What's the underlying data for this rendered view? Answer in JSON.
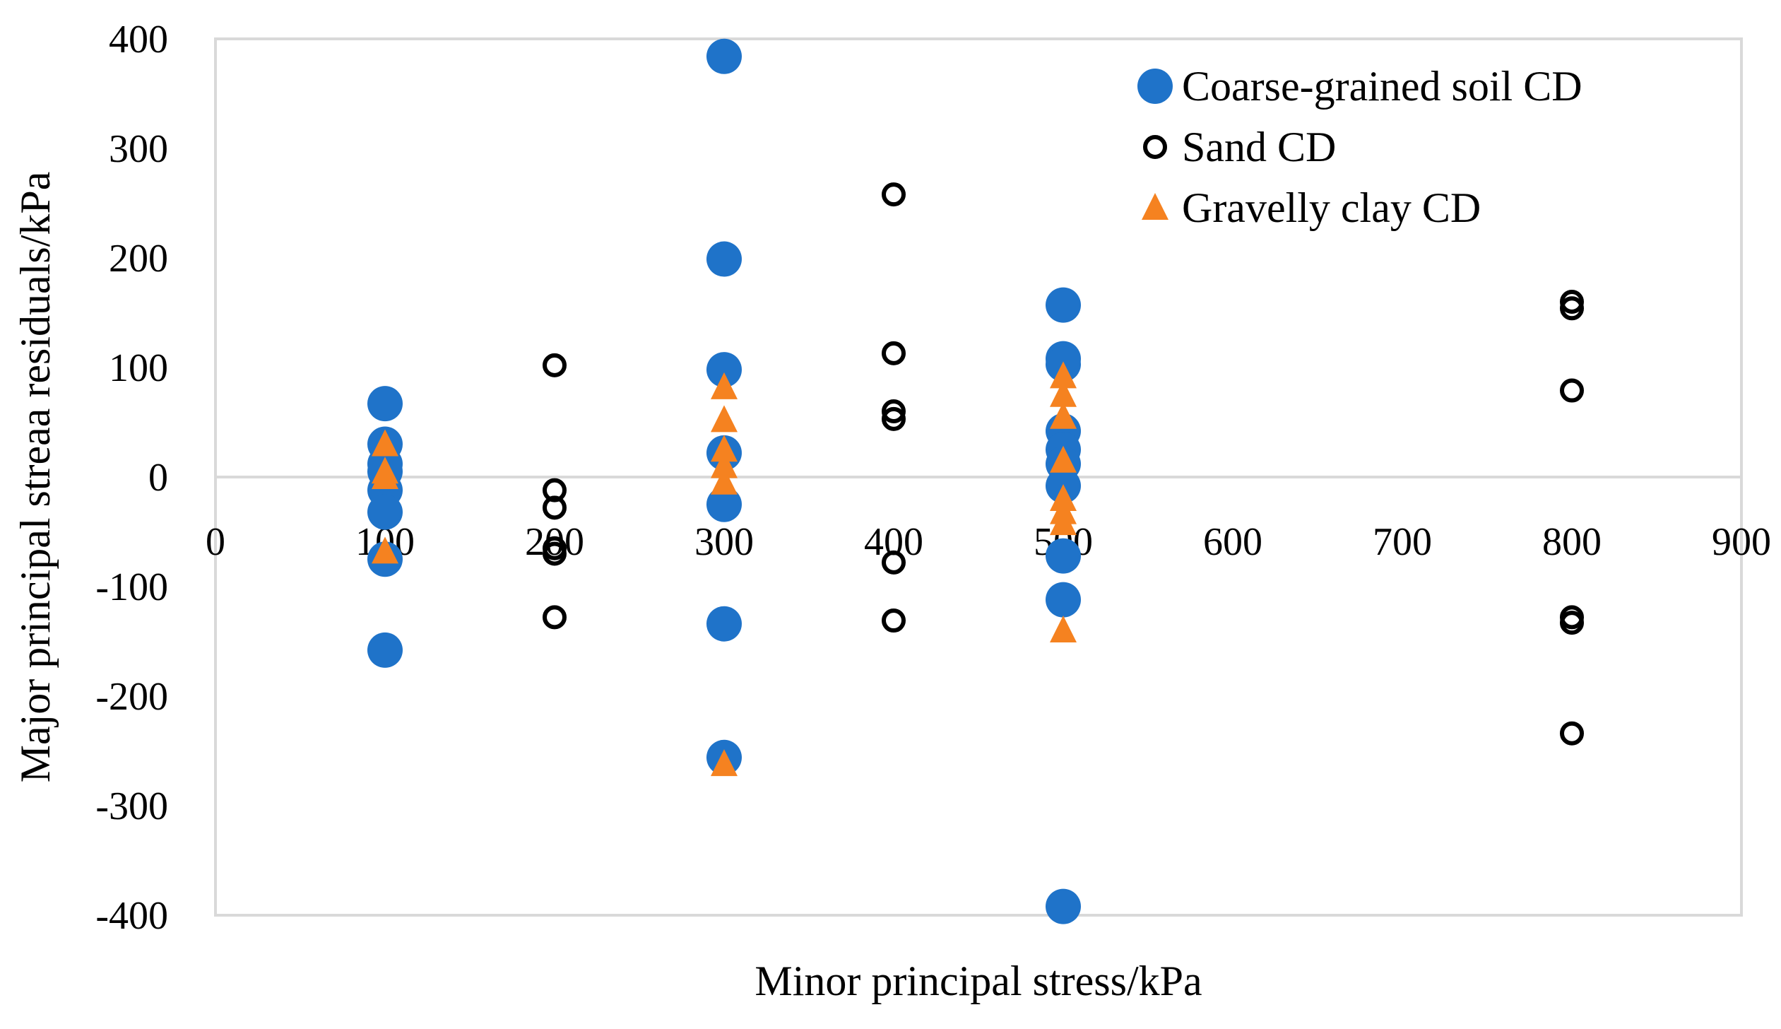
{
  "chart_data": {
    "type": "scatter",
    "title": "",
    "xlabel": "Minor principal stress/kPa",
    "ylabel": "Major principal streaa residuals/kPa",
    "xlim": [
      0,
      900
    ],
    "ylim": [
      -400,
      400
    ],
    "xticks": [
      0,
      100,
      200,
      300,
      400,
      500,
      600,
      700,
      800,
      900
    ],
    "yticks": [
      400,
      300,
      200,
      100,
      0,
      -100,
      -200,
      -300,
      -400
    ],
    "legend_position": "top-right",
    "colors": {
      "coarse": "#1f73c9",
      "sand": "#000000",
      "gravelly": "#f58220",
      "frame": "#d9d9d9",
      "zero_line": "#d9d9d9"
    },
    "series": [
      {
        "name": "Coarse-grained soil CD",
        "marker": "filled-circle",
        "points": [
          [
            100,
            67
          ],
          [
            100,
            30
          ],
          [
            100,
            12
          ],
          [
            100,
            5
          ],
          [
            100,
            -12
          ],
          [
            100,
            -32
          ],
          [
            100,
            -75
          ],
          [
            100,
            -158
          ],
          [
            300,
            384
          ],
          [
            300,
            199
          ],
          [
            300,
            98
          ],
          [
            300,
            22
          ],
          [
            300,
            -25
          ],
          [
            300,
            -134
          ],
          [
            300,
            -256
          ],
          [
            500,
            157
          ],
          [
            500,
            108
          ],
          [
            500,
            103
          ],
          [
            500,
            42
          ],
          [
            500,
            25
          ],
          [
            500,
            12
          ],
          [
            500,
            -8
          ],
          [
            500,
            -72
          ],
          [
            500,
            -112
          ],
          [
            500,
            -392
          ]
        ]
      },
      {
        "name": "Sand CD",
        "marker": "open-circle",
        "points": [
          [
            200,
            102
          ],
          [
            200,
            -12
          ],
          [
            200,
            -28
          ],
          [
            200,
            -65
          ],
          [
            200,
            -70
          ],
          [
            200,
            -128
          ],
          [
            400,
            258
          ],
          [
            400,
            113
          ],
          [
            400,
            60
          ],
          [
            400,
            53
          ],
          [
            400,
            -78
          ],
          [
            400,
            -131
          ],
          [
            800,
            160
          ],
          [
            800,
            154
          ],
          [
            800,
            79
          ],
          [
            800,
            -128
          ],
          [
            800,
            -133
          ],
          [
            800,
            -234
          ]
        ]
      },
      {
        "name": "Gravelly clay CD",
        "marker": "triangle",
        "points": [
          [
            100,
            30
          ],
          [
            100,
            5
          ],
          [
            100,
            0
          ],
          [
            100,
            -68
          ],
          [
            300,
            82
          ],
          [
            300,
            52
          ],
          [
            300,
            25
          ],
          [
            300,
            10
          ],
          [
            300,
            -5
          ],
          [
            300,
            -262
          ],
          [
            500,
            92
          ],
          [
            500,
            75
          ],
          [
            500,
            55
          ],
          [
            500,
            15
          ],
          [
            500,
            -20
          ],
          [
            500,
            -32
          ],
          [
            500,
            -42
          ],
          [
            500,
            -140
          ]
        ]
      }
    ]
  }
}
